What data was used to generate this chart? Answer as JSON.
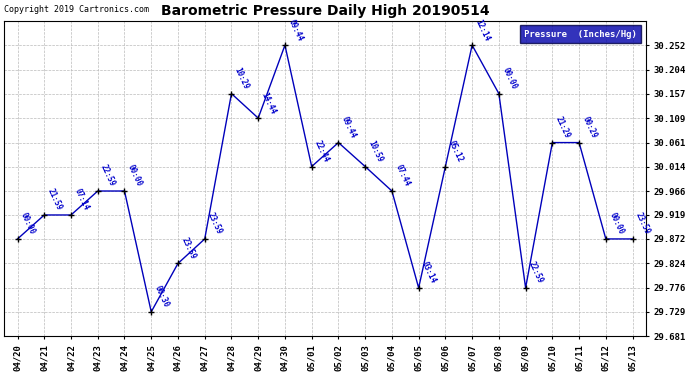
{
  "title": "Barometric Pressure Daily High 20190514",
  "copyright": "Copyright 2019 Cartronics.com",
  "dates": [
    "04/20",
    "04/21",
    "04/22",
    "04/23",
    "04/24",
    "04/25",
    "04/26",
    "04/27",
    "04/28",
    "04/29",
    "04/30",
    "05/01",
    "05/02",
    "05/03",
    "05/04",
    "05/05",
    "05/06",
    "05/07",
    "05/08",
    "05/09",
    "05/10",
    "05/11",
    "05/12",
    "05/13"
  ],
  "values": [
    29.872,
    29.919,
    29.919,
    29.966,
    29.966,
    29.729,
    29.824,
    29.872,
    30.157,
    30.109,
    30.252,
    30.014,
    30.061,
    30.014,
    29.966,
    29.776,
    30.014,
    30.252,
    30.157,
    29.776,
    30.061,
    30.061,
    29.872,
    29.872
  ],
  "times": [
    "00:00",
    "21:59",
    "07:14",
    "22:59",
    "00:00",
    "00:30",
    "23:59",
    "23:59",
    "10:29",
    "14:44",
    "09:44",
    "22:44",
    "09:44",
    "10:59",
    "07:44",
    "03:14",
    "05:12",
    "12:14",
    "00:00",
    "22:59",
    "21:29",
    "00:29",
    "00:00",
    "23:59"
  ],
  "ylim_min": 29.681,
  "ylim_max": 30.3,
  "yticks": [
    29.681,
    29.729,
    29.776,
    29.824,
    29.872,
    29.919,
    29.966,
    30.014,
    30.061,
    30.109,
    30.157,
    30.204,
    30.252
  ],
  "line_color": "#0000bb",
  "marker_color": "#000000",
  "bg_color": "#ffffff",
  "grid_color": "#bbbbbb",
  "text_color_blue": "#0000cc",
  "text_color_black": "#000000",
  "legend_bg": "#0000aa",
  "legend_text": "#ffffff"
}
